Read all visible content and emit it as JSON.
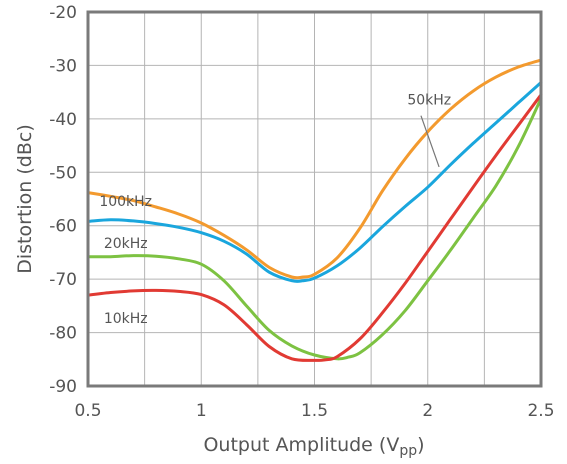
{
  "chart_data": {
    "type": "line",
    "xlabel": "Output Amplitude (V",
    "xlabel_sub": "pp",
    "xlabel_end": ")",
    "ylabel": "Distortion (dBc)",
    "xlim": [
      0.5,
      2.5
    ],
    "ylim": [
      -90,
      -20
    ],
    "x_ticks": [
      {
        "value": 0.5,
        "label": "0.5"
      },
      {
        "value": 1,
        "label": "1"
      },
      {
        "value": 1.5,
        "label": "1.5"
      },
      {
        "value": 2,
        "label": "2"
      },
      {
        "value": 2.5,
        "label": "2.5"
      }
    ],
    "y_ticks": [
      {
        "value": -20,
        "label": "-20"
      },
      {
        "value": -30,
        "label": "-30"
      },
      {
        "value": -40,
        "label": "-40"
      },
      {
        "value": -50,
        "label": "-50"
      },
      {
        "value": -60,
        "label": "-60"
      },
      {
        "value": -70,
        "label": "-70"
      },
      {
        "value": -80,
        "label": "-80"
      },
      {
        "value": -90,
        "label": "-90"
      }
    ],
    "x_grid": [
      0.75,
      1,
      1.25,
      1.5,
      1.75,
      2,
      2.25
    ],
    "y_grid": [
      -30,
      -40,
      -50,
      -60,
      -70,
      -80
    ],
    "grid": true,
    "frame_color": "#7a7a7a",
    "grid_color": "#b4b4b4",
    "series": [
      {
        "name": "100kHz",
        "color": "#f39a2e",
        "x": [
          0.5,
          0.6,
          0.7,
          0.8,
          0.9,
          1.0,
          1.1,
          1.2,
          1.3,
          1.4,
          1.45,
          1.5,
          1.6,
          1.7,
          1.8,
          1.9,
          2.0,
          2.1,
          2.2,
          2.3,
          2.4,
          2.5
        ],
        "y": [
          -53.8,
          -54.5,
          -55.3,
          -56.5,
          -57.8,
          -59.5,
          -61.8,
          -64.5,
          -67.8,
          -69.6,
          -69.6,
          -69.1,
          -66.0,
          -60.5,
          -53.5,
          -47.5,
          -42.4,
          -38.2,
          -34.8,
          -32.2,
          -30.3,
          -29.0
        ]
      },
      {
        "name": "50kHz",
        "color": "#1aa6dd",
        "x": [
          0.5,
          0.6,
          0.7,
          0.8,
          0.9,
          1.0,
          1.1,
          1.2,
          1.3,
          1.4,
          1.45,
          1.5,
          1.6,
          1.7,
          1.8,
          1.9,
          2.0,
          2.1,
          2.2,
          2.3,
          2.4,
          2.5
        ],
        "y": [
          -59.2,
          -58.9,
          -59.1,
          -59.6,
          -60.3,
          -61.3,
          -62.9,
          -65.3,
          -68.7,
          -70.3,
          -70.3,
          -69.8,
          -67.5,
          -64.2,
          -60.2,
          -56.4,
          -52.8,
          -48.6,
          -44.6,
          -40.8,
          -37.0,
          -33.2
        ]
      },
      {
        "name": "20kHz",
        "color": "#7dc242",
        "x": [
          0.5,
          0.6,
          0.7,
          0.8,
          0.9,
          1.0,
          1.1,
          1.2,
          1.3,
          1.4,
          1.5,
          1.6,
          1.65,
          1.7,
          1.8,
          1.9,
          2.0,
          2.1,
          2.2,
          2.3,
          2.4,
          2.5
        ],
        "y": [
          -65.8,
          -65.8,
          -65.6,
          -65.7,
          -66.2,
          -67.2,
          -70.3,
          -75.0,
          -79.6,
          -82.5,
          -84.2,
          -84.9,
          -84.6,
          -83.8,
          -80.4,
          -75.9,
          -70.3,
          -64.6,
          -58.6,
          -52.6,
          -45.2,
          -36.2
        ]
      },
      {
        "name": "10kHz",
        "color": "#e13a33",
        "x": [
          0.5,
          0.6,
          0.7,
          0.8,
          0.9,
          1.0,
          1.1,
          1.2,
          1.3,
          1.4,
          1.5,
          1.55,
          1.6,
          1.7,
          1.8,
          1.9,
          2.0,
          2.1,
          2.2,
          2.3,
          2.4,
          2.5
        ],
        "y": [
          -73.0,
          -72.5,
          -72.2,
          -72.1,
          -72.3,
          -72.9,
          -74.8,
          -78.5,
          -82.6,
          -84.9,
          -85.2,
          -85.1,
          -84.5,
          -81.2,
          -76.3,
          -70.8,
          -64.8,
          -58.8,
          -52.8,
          -46.9,
          -41.2,
          -35.5
        ]
      }
    ],
    "labels": [
      {
        "text": "100kHz",
        "x": 0.55,
        "y": -56.3
      },
      {
        "text": "50kHz",
        "x": 1.91,
        "y": -37.3
      },
      {
        "text": "20kHz",
        "x": 0.57,
        "y": -64.2
      },
      {
        "text": "10kHz",
        "x": 0.57,
        "y": -78.2
      }
    ],
    "callout": {
      "from": [
        1.97,
        -39.4
      ],
      "to": [
        2.05,
        -49.0
      ]
    }
  }
}
